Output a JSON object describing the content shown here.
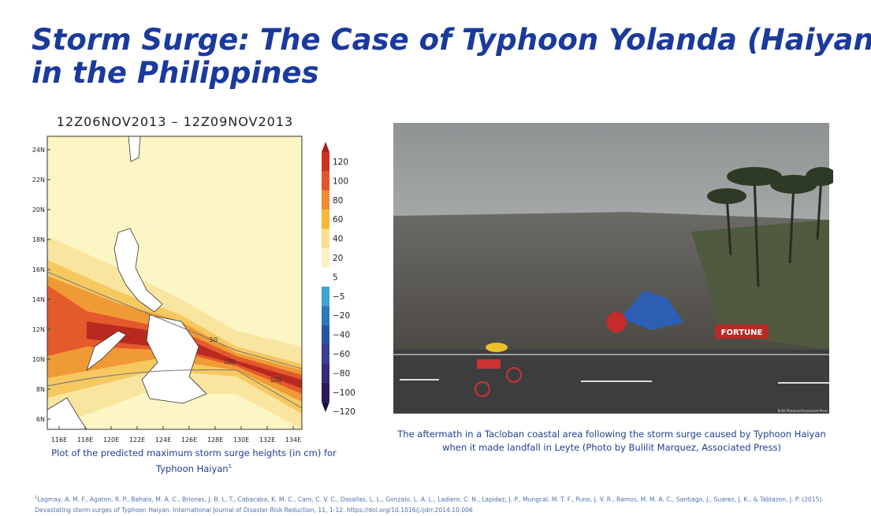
{
  "title_lines": [
    "Storm Surge: The Case of Typhoon Yolanda (Haiyan)",
    "in the Philippines"
  ],
  "map": {
    "title": "12Z06NOV2013 – 12Z09NOV2013",
    "lat_labels": [
      "24N",
      "22N",
      "20N",
      "18N",
      "16N",
      "14N",
      "12N",
      "10N",
      "8N",
      "6N"
    ],
    "lon_labels": [
      "116E",
      "118E",
      "120E",
      "122E",
      "124E",
      "126E",
      "128E",
      "130E",
      "132E",
      "134E"
    ],
    "colorbar_labels": [
      "120",
      "100",
      "80",
      "60",
      "40",
      "20",
      "5",
      "−5",
      "−20",
      "−40",
      "−60",
      "−80",
      "−100",
      "−120"
    ],
    "contour_labels": [
      "50",
      "100",
      "100"
    ],
    "caption_lines": [
      "Plot of the predicted maximum storm surge heights (in cm) for",
      "Typhoon Haiyan"
    ],
    "caption_note": "1"
  },
  "photo": {
    "credit": "Bullit Marquez/Associated Press",
    "sign": "FORTUNE",
    "caption_lines": [
      "The aftermath in a Tacloban coastal area following the storm surge caused by Typhoon Haiyan",
      "when it made landfall in Leyte (Photo by Bulilit Marquez, Associated Press)"
    ]
  },
  "footnote": {
    "marker": "1",
    "lines": [
      "Lagmay, A. M. F., Agaton, R. P., Bahala, M. A. C., Briones, J. B. L. T., Cabacaba, K. M. C., Caro, C. V. C., Dasallas, L. L., Gonzalo, L. A. L., Ladiero, C. N., Lapidez, J. P., Mungcal, M. T. F., Puno, J. V. R., Ramos, M. M. A. C., Santiago, J., Suarez, J. K., & Tablazon, J. P. (2015).",
      "Devastating storm surges of Typhoon Haiyan. International Journal of Disaster Risk Reduction, 11, 1-12. https://doi.org/10.1016/j.ijdrr.2014.10.006"
    ]
  }
}
